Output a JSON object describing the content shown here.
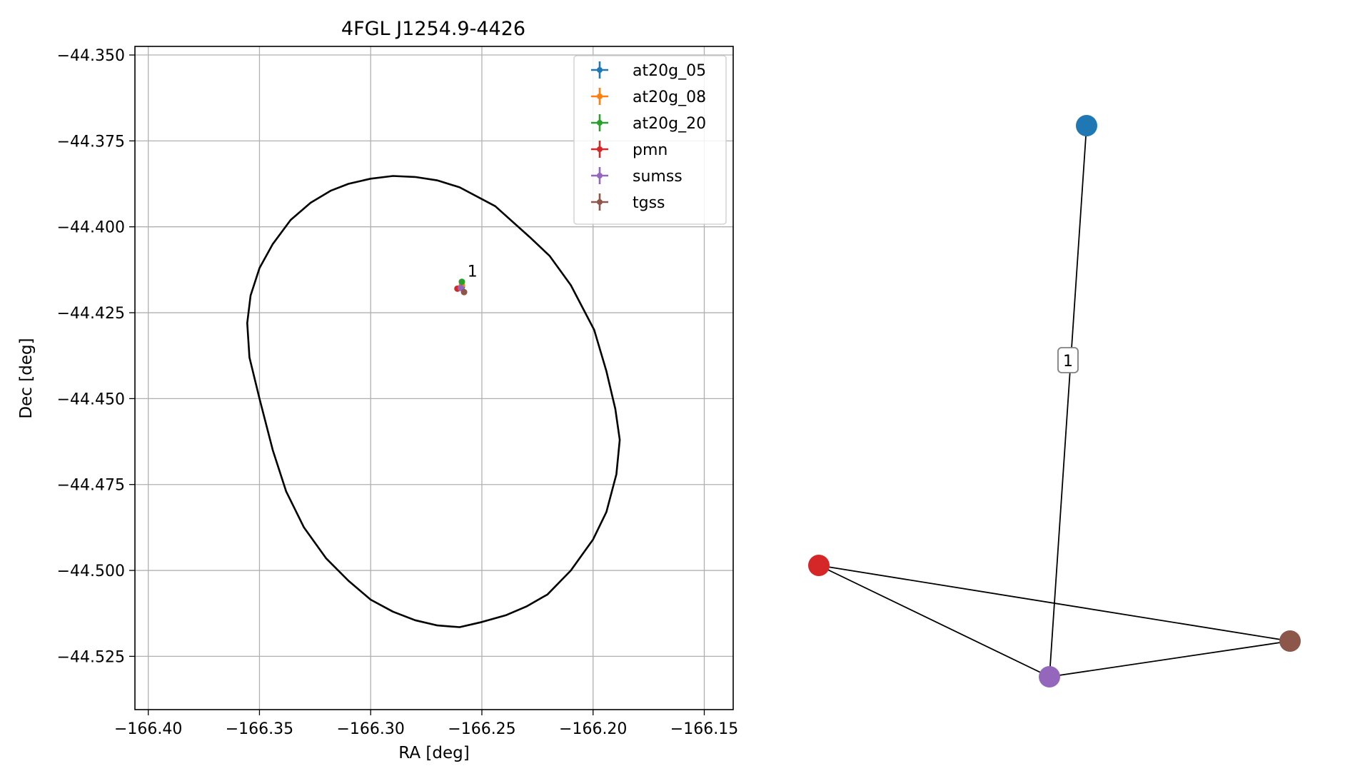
{
  "chart_data": [
    {
      "type": "scatter",
      "title": "4FGL J1254.9-4426",
      "xlabel": "RA [deg]",
      "ylabel": "Dec [deg]",
      "xlim": [
        -166.406,
        -166.137
      ],
      "ylim": [
        -44.5405,
        -44.3475
      ],
      "xticks": [
        -166.4,
        -166.35,
        -166.3,
        -166.25,
        -166.2,
        -166.15
      ],
      "xtick_labels": [
        "−166.40",
        "−166.35",
        "−166.30",
        "−166.25",
        "−166.20",
        "−166.15"
      ],
      "yticks": [
        -44.35,
        -44.375,
        -44.4,
        -44.425,
        -44.45,
        -44.475,
        -44.5,
        -44.525
      ],
      "ytick_labels": [
        "−44.350",
        "−44.375",
        "−44.400",
        "−44.425",
        "−44.450",
        "−44.475",
        "−44.500",
        "−44.525"
      ],
      "grid": true,
      "legend_position": "top-right",
      "series": [
        {
          "name": "at20g_05",
          "color": "#1f77b4",
          "points": [
            {
              "ra": -166.259,
              "dec": -44.4175
            }
          ]
        },
        {
          "name": "at20g_08",
          "color": "#ff7f0e",
          "points": [
            {
              "ra": -166.259,
              "dec": -44.417
            }
          ]
        },
        {
          "name": "at20g_20",
          "color": "#2ca02c",
          "points": [
            {
              "ra": -166.259,
              "dec": -44.416
            }
          ]
        },
        {
          "name": "pmn",
          "color": "#d62728",
          "points": [
            {
              "ra": -166.261,
              "dec": -44.418
            }
          ]
        },
        {
          "name": "sumss",
          "color": "#9467bd",
          "points": [
            {
              "ra": -166.2595,
              "dec": -44.4178
            }
          ]
        },
        {
          "name": "tgss",
          "color": "#8c564b",
          "points": [
            {
              "ra": -166.258,
              "dec": -44.419
            }
          ]
        }
      ],
      "annotations": [
        {
          "text": "1",
          "ra": -166.2565,
          "dec": -44.4145
        }
      ],
      "ellipse": {
        "color": "#000000",
        "points": [
          [
            -166.28,
            -44.3855
          ],
          [
            -166.27,
            -44.3865
          ],
          [
            -166.26,
            -44.3885
          ],
          [
            -166.244,
            -44.394
          ],
          [
            -166.2285,
            -44.403
          ],
          [
            -166.2195,
            -44.4085
          ],
          [
            -166.21,
            -44.417
          ],
          [
            -166.1995,
            -44.43
          ],
          [
            -166.194,
            -44.442
          ],
          [
            -166.19,
            -44.453
          ],
          [
            -166.188,
            -44.462
          ],
          [
            -166.1895,
            -44.472
          ],
          [
            -166.194,
            -44.483
          ],
          [
            -166.2,
            -44.491
          ],
          [
            -166.21,
            -44.5
          ],
          [
            -166.2205,
            -44.507
          ],
          [
            -166.23,
            -44.5105
          ],
          [
            -166.239,
            -44.513
          ],
          [
            -166.25,
            -44.515
          ],
          [
            -166.26,
            -44.5165
          ],
          [
            -166.27,
            -44.516
          ],
          [
            -166.28,
            -44.5145
          ],
          [
            -166.29,
            -44.512
          ],
          [
            -166.3,
            -44.5085
          ],
          [
            -166.31,
            -44.503
          ],
          [
            -166.32,
            -44.4965
          ],
          [
            -166.33,
            -44.4875
          ],
          [
            -166.338,
            -44.477
          ],
          [
            -166.344,
            -44.465
          ],
          [
            -166.35,
            -44.45
          ],
          [
            -166.3545,
            -44.438
          ],
          [
            -166.3555,
            -44.428
          ],
          [
            -166.354,
            -44.42
          ],
          [
            -166.35,
            -44.412
          ],
          [
            -166.344,
            -44.405
          ],
          [
            -166.336,
            -44.398
          ],
          [
            -166.327,
            -44.393
          ],
          [
            -166.318,
            -44.3895
          ],
          [
            -166.31,
            -44.3875
          ],
          [
            -166.3,
            -44.386
          ],
          [
            -166.29,
            -44.3852
          ],
          [
            -166.28,
            -44.3855
          ]
        ]
      }
    },
    {
      "type": "network",
      "nodes": [
        {
          "id": "at20g_05",
          "color": "#1f77b4"
        },
        {
          "id": "pmn",
          "color": "#d62728"
        },
        {
          "id": "sumss",
          "color": "#9467bd"
        },
        {
          "id": "tgss",
          "color": "#8c564b"
        }
      ],
      "edges": [
        {
          "source": "at20g_05",
          "target": "sumss",
          "label": "1"
        },
        {
          "source": "pmn",
          "target": "sumss",
          "label": ""
        },
        {
          "source": "pmn",
          "target": "tgss",
          "label": ""
        },
        {
          "source": "sumss",
          "target": "tgss",
          "label": ""
        }
      ]
    }
  ]
}
